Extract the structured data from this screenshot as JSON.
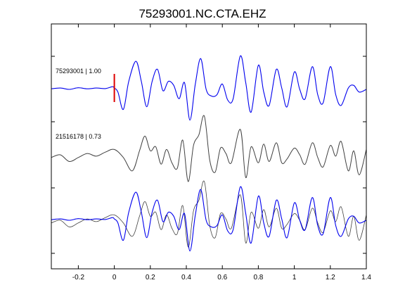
{
  "chart_data": {
    "type": "line",
    "title": "75293001.NC.CTA.EHZ",
    "xlabel": "",
    "ylabel": "",
    "xlim": [
      -0.35,
      1.4
    ],
    "xticks": [
      -0.2,
      0,
      0.2,
      0.4,
      0.6,
      0.8,
      1,
      1.2,
      1.4
    ],
    "xtick_labels": [
      "-0.2",
      "0",
      "0.2",
      "0.4",
      "0.6",
      "0.8",
      "1",
      "1.2",
      "1.4"
    ],
    "grid": false,
    "pick_marker": {
      "x": 0,
      "color": "#dd0000"
    },
    "traces": [
      {
        "label": "75293001 | 1.00",
        "color": "#0000ee",
        "row": 1
      },
      {
        "label": "21516178 | 0.73",
        "color": "#404040",
        "row": 2
      }
    ],
    "series": [
      {
        "row": 1,
        "color": "#0000ee",
        "x": [
          -0.35,
          -0.3,
          -0.25,
          -0.2,
          -0.15,
          -0.1,
          -0.05,
          -0.01,
          0.0,
          0.02,
          0.05,
          0.08,
          0.12,
          0.15,
          0.18,
          0.21,
          0.24,
          0.27,
          0.3,
          0.33,
          0.36,
          0.39,
          0.42,
          0.45,
          0.48,
          0.51,
          0.54,
          0.57,
          0.6,
          0.63,
          0.66,
          0.7,
          0.73,
          0.76,
          0.8,
          0.83,
          0.86,
          0.9,
          0.93,
          0.96,
          1.0,
          1.03,
          1.06,
          1.1,
          1.13,
          1.16,
          1.2,
          1.23,
          1.26,
          1.3,
          1.33,
          1.36,
          1.4
        ],
        "y": [
          0.02,
          0.05,
          0.0,
          0.06,
          0.02,
          0.05,
          0.03,
          0.1,
          0.05,
          -0.1,
          -0.75,
          0.3,
          1.05,
          0.3,
          -0.65,
          0.3,
          0.75,
          -0.05,
          0.3,
          0.15,
          -0.35,
          0.25,
          -1.15,
          0.2,
          1.15,
          0.0,
          -0.25,
          -0.2,
          0.2,
          -0.4,
          -0.35,
          1.25,
          0.25,
          -0.85,
          0.9,
          -0.1,
          -0.6,
          0.75,
          0.05,
          -0.65,
          0.65,
          0.0,
          -0.35,
          0.85,
          -0.2,
          -0.5,
          0.85,
          -0.2,
          -0.6,
          0.05,
          0.15,
          -0.1,
          0.0
        ]
      },
      {
        "row": 2,
        "color": "#404040",
        "x": [
          -0.35,
          -0.3,
          -0.25,
          -0.2,
          -0.15,
          -0.1,
          -0.05,
          0.0,
          0.05,
          0.1,
          0.14,
          0.17,
          0.2,
          0.23,
          0.26,
          0.29,
          0.32,
          0.35,
          0.38,
          0.41,
          0.44,
          0.47,
          0.5,
          0.53,
          0.56,
          0.59,
          0.62,
          0.65,
          0.7,
          0.73,
          0.76,
          0.8,
          0.83,
          0.86,
          0.9,
          0.93,
          0.96,
          1.0,
          1.03,
          1.06,
          1.1,
          1.13,
          1.16,
          1.2,
          1.23,
          1.26,
          1.3,
          1.33,
          1.36,
          1.4
        ],
        "y": [
          -0.1,
          0.0,
          -0.25,
          -0.1,
          0.05,
          -0.05,
          0.1,
          0.2,
          -0.1,
          -0.6,
          0.15,
          0.7,
          0.15,
          0.3,
          -0.35,
          0.2,
          -0.3,
          -0.5,
          0.55,
          -1.0,
          0.35,
          0.75,
          1.45,
          -0.2,
          -0.65,
          0.25,
          0.05,
          -0.3,
          0.95,
          -0.85,
          0.3,
          -0.3,
          0.4,
          -0.25,
          0.45,
          -0.3,
          -0.15,
          0.25,
          0.0,
          -0.35,
          0.45,
          -0.1,
          -0.45,
          0.35,
          -0.05,
          0.5,
          -0.6,
          0.15,
          -0.75,
          0.2
        ]
      }
    ]
  }
}
